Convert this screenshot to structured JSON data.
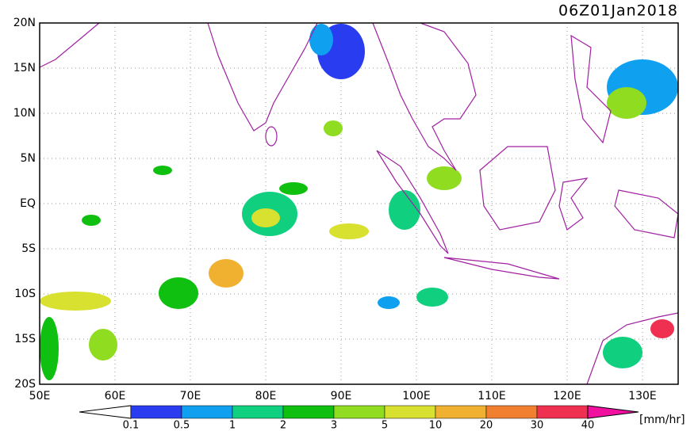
{
  "header": {
    "title": "06Z01Jan2018"
  },
  "map": {
    "lat_labels": [
      "20N",
      "15N",
      "10N",
      "5N",
      "EQ",
      "5S",
      "10S",
      "15S",
      "20S"
    ],
    "lon_labels": [
      "50E",
      "60E",
      "70E",
      "80E",
      "90E",
      "100E",
      "110E",
      "120E",
      "130E"
    ]
  },
  "colorbar": {
    "labels": [
      "0.1",
      "0.5",
      "1",
      "2",
      "3",
      "5",
      "10",
      "20",
      "30",
      "40"
    ],
    "colors": [
      "#ffffff",
      "#2a3cf0",
      "#10a0f0",
      "#10d080",
      "#10c010",
      "#90dc20",
      "#d8e030",
      "#f0b030",
      "#f08030",
      "#f03050",
      "#f010a0"
    ],
    "unit": "[mm/hr]"
  }
}
